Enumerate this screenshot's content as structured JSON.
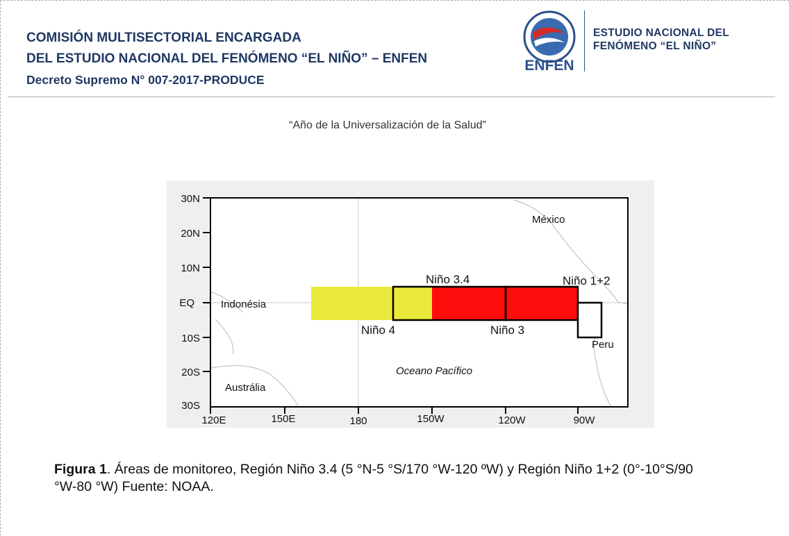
{
  "header": {
    "title_lines": [
      "COMISIÓN MULTISECTORIAL ENCARGADA",
      "DEL ESTUDIO NACIONAL DEL FENÓMENO “EL NIÑO” – ENFEN"
    ],
    "decree": "Decreto Supremo N° 007-2017-PRODUCE"
  },
  "logo": {
    "acronym": "ENFEN",
    "org_lines": [
      "ESTUDIO NACIONAL DEL",
      "FENÓMENO  “EL  NIÑO”"
    ]
  },
  "subtitle": "“Año de la Universalización de la Salud”",
  "figure": {
    "lat_labels": [
      "30N",
      "20N",
      "10N",
      "EQ",
      "10S",
      "20S",
      "30S"
    ],
    "lon_labels": [
      "120E",
      "150E",
      "180",
      "150W",
      "120W",
      "90W"
    ],
    "regions": {
      "nino34": "Niño 3.4",
      "nino4": "Niño 4",
      "nino3": "Niño 3",
      "nino12": "Niño 1+2"
    },
    "places": {
      "mexico": "México",
      "indonesia": "Indonésia",
      "peru": "Peru",
      "ocean": "Oceano Pacífico",
      "australia": "Austrália"
    }
  },
  "caption": {
    "label": "Figura 1",
    "text": ". Áreas de monitoreo, Región Niño 3.4 (5 °N-5 °S/170 °W-120 ºW) y Región Niño 1+2 (0°-10°S/90 °W-80 °W) Fuente: NOAA."
  }
}
